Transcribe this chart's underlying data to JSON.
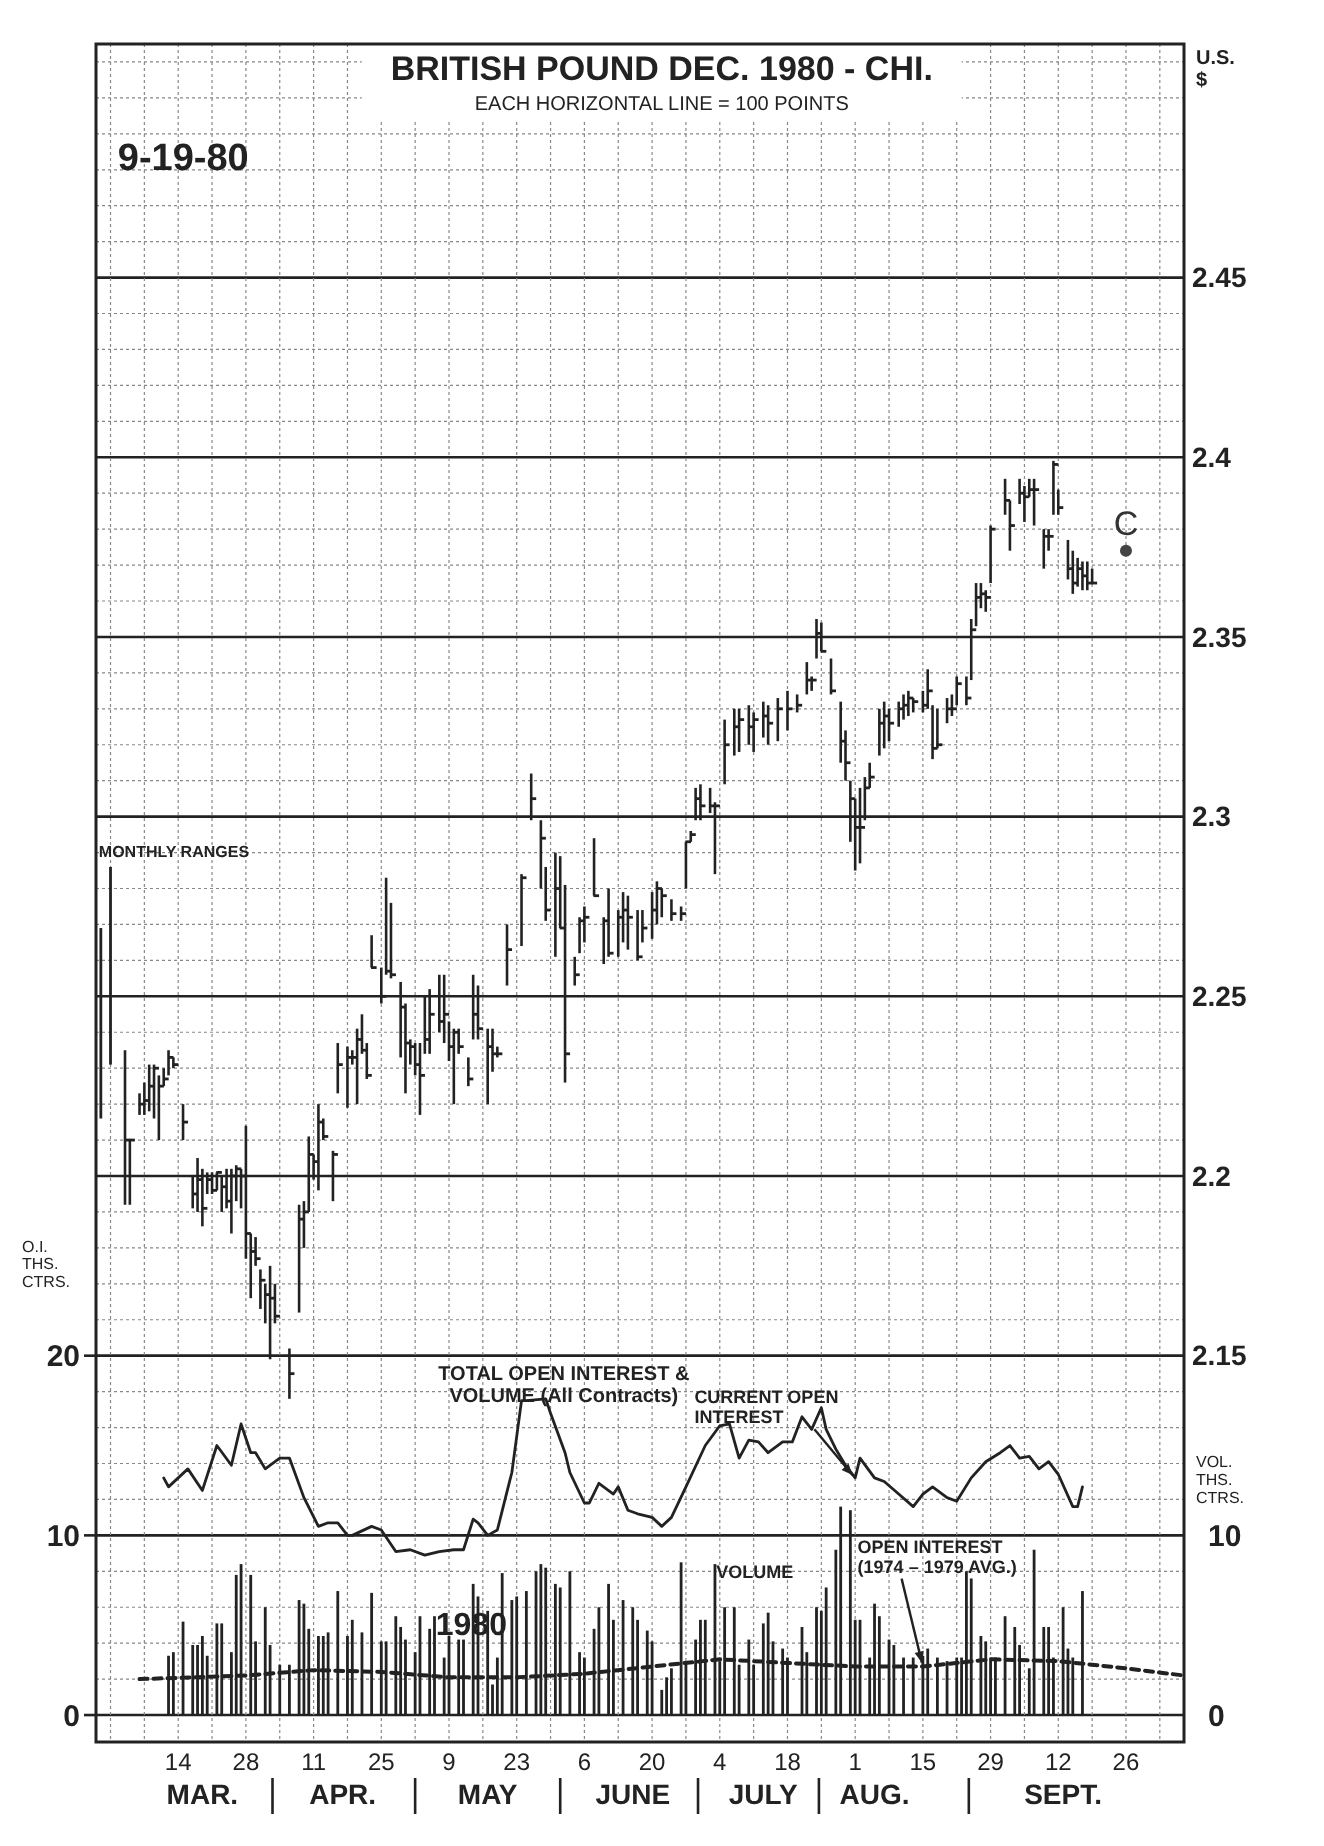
{
  "chart_data": {
    "type": "scatter",
    "title": "BRITISH POUND DEC. 1980 - CHI.",
    "subtitle": "EACH HORIZONTAL LINE = 100 POINTS",
    "ylabel": "U.S. $",
    "y2label": "O.I. THS. CTRS.",
    "y3label": "VOL. THS. CTRS.",
    "xlim": [
      "1980-02-26",
      "1980-10-08"
    ],
    "xticks": [
      {
        "value": "1980-03-14",
        "label": "14"
      },
      {
        "value": "1980-03-28",
        "label": "28"
      },
      {
        "value": "1980-04-11",
        "label": "11"
      },
      {
        "value": "1980-04-25",
        "label": "25"
      },
      {
        "value": "1980-05-09",
        "label": "9"
      },
      {
        "value": "1980-05-23",
        "label": "23"
      },
      {
        "value": "1980-06-06",
        "label": "6"
      },
      {
        "value": "1980-06-20",
        "label": "20"
      },
      {
        "value": "1980-07-04",
        "label": "4"
      },
      {
        "value": "1980-07-18",
        "label": "18"
      },
      {
        "value": "1980-08-01",
        "label": "1"
      },
      {
        "value": "1980-08-15",
        "label": "15"
      },
      {
        "value": "1980-08-29",
        "label": "29"
      },
      {
        "value": "1980-09-12",
        "label": "12"
      },
      {
        "value": "1980-09-26",
        "label": "26"
      }
    ],
    "x2lim": [
      "1980-02-26",
      "1980-10-08"
    ],
    "x2ticks": [
      {
        "value": "1980-03-19",
        "label": "MAR."
      },
      {
        "value": "1980-04-17",
        "label": "APR."
      },
      {
        "value": "1980-05-17",
        "label": "MAY"
      },
      {
        "value": "1980-06-16",
        "label": "JUNE"
      },
      {
        "value": "1980-07-13",
        "label": "JULY"
      },
      {
        "value": "1980-08-05",
        "label": "AUG."
      },
      {
        "value": "1980-09-13",
        "label": "SEPT."
      }
    ],
    "ylim": [
      2.0425,
      2.515
    ],
    "yticks": [
      2.15,
      2.2,
      2.25,
      2.3,
      2.35,
      2.4,
      2.45
    ],
    "y2lim": [
      -1.5,
      93
    ],
    "y2ticks": [
      0,
      10,
      20
    ],
    "y3lim": [
      -1.5,
      93
    ],
    "y3ticks": [
      0,
      10
    ],
    "grid": true,
    "series": [
      {
        "name": "MONTHLY RANGES",
        "type": "bar",
        "color": "#222222",
        "x": [
          "1980-02-27",
          "1980-02-29"
        ],
        "base": [
          2.216,
          2.231
        ],
        "values": [
          0.053,
          0.055
        ]
      },
      {
        "color": "#222222",
        "x": [
          "1980-03-03",
          "1980-03-04",
          "1980-03-06",
          "1980-03-07",
          "1980-03-08",
          "1980-03-09",
          "1980-03-10",
          "1980-03-11",
          "1980-03-12",
          "1980-03-13",
          "1980-03-15",
          "1980-03-17",
          "1980-03-18",
          "1980-03-19",
          "1980-03-20",
          "1980-03-21",
          "1980-03-22",
          "1980-03-23",
          "1980-03-24",
          "1980-03-25",
          "1980-03-26",
          "1980-03-27",
          "1980-03-28",
          "1980-03-29",
          "1980-03-30",
          "1980-03-31",
          "1980-04-01",
          "1980-04-02",
          "1980-04-03",
          "1980-04-06",
          "1980-04-08",
          "1980-04-09",
          "1980-04-10",
          "1980-04-11",
          "1980-04-12",
          "1980-04-13",
          "1980-04-15",
          "1980-04-16",
          "1980-04-18",
          "1980-04-19",
          "1980-04-20",
          "1980-04-21",
          "1980-04-22",
          "1980-04-23",
          "1980-04-25",
          "1980-04-26",
          "1980-04-27",
          "1980-04-29",
          "1980-04-30",
          "1980-05-01",
          "1980-05-02",
          "1980-05-03",
          "1980-05-04",
          "1980-05-05",
          "1980-05-07",
          "1980-05-08",
          "1980-05-09",
          "1980-05-10",
          "1980-05-11",
          "1980-05-13",
          "1980-05-14",
          "1980-05-15",
          "1980-05-17",
          "1980-05-18",
          "1980-05-19",
          "1980-05-21",
          "1980-05-24",
          "1980-05-26",
          "1980-05-28",
          "1980-05-29",
          "1980-05-31",
          "1980-06-01",
          "1980-06-02",
          "1980-06-04",
          "1980-06-05",
          "1980-06-06",
          "1980-06-08",
          "1980-06-10",
          "1980-06-11",
          "1980-06-13",
          "1980-06-14",
          "1980-06-15",
          "1980-06-17",
          "1980-06-18",
          "1980-06-20",
          "1980-06-21",
          "1980-06-22",
          "1980-06-24",
          "1980-06-26",
          "1980-06-27",
          "1980-06-28",
          "1980-06-29",
          "1980-06-30",
          "1980-07-02",
          "1980-07-03",
          "1980-07-05",
          "1980-07-07",
          "1980-07-08",
          "1980-07-10",
          "1980-07-11",
          "1980-07-13",
          "1980-07-14",
          "1980-07-16",
          "1980-07-18",
          "1980-07-20",
          "1980-07-22",
          "1980-07-23",
          "1980-07-24",
          "1980-07-25",
          "1980-07-27",
          "1980-07-29",
          "1980-07-30",
          "1980-07-31",
          "1980-08-01",
          "1980-08-02",
          "1980-08-03",
          "1980-08-04",
          "1980-08-06",
          "1980-08-07",
          "1980-08-08",
          "1980-08-10",
          "1980-08-11",
          "1980-08-12",
          "1980-08-13",
          "1980-08-15",
          "1980-08-16",
          "1980-08-17",
          "1980-08-18",
          "1980-08-20",
          "1980-08-21",
          "1980-08-22",
          "1980-08-24",
          "1980-08-25",
          "1980-08-26",
          "1980-08-27",
          "1980-08-28",
          "1980-08-29",
          "1980-09-01",
          "1980-09-02",
          "1980-09-04",
          "1980-09-05",
          "1980-09-06",
          "1980-09-07",
          "1980-09-09",
          "1980-09-10",
          "1980-09-11",
          "1980-09-12",
          "1980-09-14",
          "1980-09-15",
          "1980-09-16",
          "1980-09-17",
          "1980-09-18",
          "1980-09-19"
        ],
        "values": [
          2.21,
          2.21,
          2.22,
          2.221,
          2.225,
          2.23,
          2.225,
          2.227,
          2.233,
          2.231,
          2.215,
          2.195,
          2.199,
          2.191,
          2.199,
          2.196,
          2.201,
          2.197,
          2.193,
          2.2,
          2.202,
          2.2,
          2.184,
          2.179,
          2.177,
          2.171,
          2.167,
          2.166,
          2.161,
          2.145,
          2.188,
          2.19,
          2.206,
          2.204,
          2.215,
          2.211,
          2.206,
          2.231,
          2.233,
          2.233,
          2.238,
          2.235,
          2.228,
          2.258,
          2.25,
          2.257,
          2.256,
          2.247,
          2.237,
          2.236,
          2.231,
          2.228,
          2.238,
          2.245,
          2.243,
          2.245,
          2.236,
          2.24,
          2.236,
          2.227,
          2.245,
          2.241,
          2.236,
          2.234,
          2.234,
          2.263,
          2.283,
          2.305,
          2.294,
          2.274,
          2.28,
          2.269,
          2.234,
          2.256,
          2.271,
          2.272,
          2.278,
          2.271,
          2.262,
          2.272,
          2.274,
          2.272,
          2.261,
          2.269,
          2.274,
          2.28,
          2.278,
          2.273,
          2.273,
          2.293,
          2.295,
          2.305,
          2.303,
          2.303,
          2.303,
          2.32,
          2.325,
          2.327,
          2.325,
          2.327,
          2.328,
          2.326,
          2.33,
          2.33,
          2.331,
          2.338,
          2.338,
          2.351,
          2.346,
          2.335,
          2.321,
          2.315,
          2.305,
          2.297,
          2.297,
          2.308,
          2.311,
          2.326,
          2.328,
          2.326,
          2.33,
          2.331,
          2.333,
          2.332,
          2.331,
          2.335,
          2.319,
          2.32,
          2.33,
          2.33,
          2.337,
          2.333,
          2.352,
          2.361,
          2.362,
          2.361,
          2.38,
          2.388,
          2.381,
          2.39,
          2.389,
          2.391,
          2.391,
          2.378,
          2.378,
          2.398,
          2.386,
          2.369,
          2.365,
          2.369,
          2.367,
          2.365,
          2.365
        ],
        "errors": [
          [
            2.192,
            2.235
          ],
          [
            2.192,
            2.21
          ],
          [
            2.217,
            2.223
          ],
          [
            2.217,
            2.226
          ],
          [
            2.218,
            2.231
          ],
          [
            2.216,
            2.231
          ],
          [
            2.21,
            2.228
          ],
          [
            2.225,
            2.23
          ],
          [
            2.228,
            2.235
          ],
          [
            2.23,
            2.233
          ],
          [
            2.21,
            2.22
          ],
          [
            2.191,
            2.2
          ],
          [
            2.19,
            2.205
          ],
          [
            2.186,
            2.202
          ],
          [
            2.195,
            2.201
          ],
          [
            2.195,
            2.201
          ],
          [
            2.196,
            2.201
          ],
          [
            2.19,
            2.2
          ],
          [
            2.191,
            2.202
          ],
          [
            2.184,
            2.202
          ],
          [
            2.193,
            2.203
          ],
          [
            2.191,
            2.202
          ],
          [
            2.177,
            2.214
          ],
          [
            2.166,
            2.184
          ],
          [
            2.175,
            2.183
          ],
          [
            2.163,
            2.174
          ],
          [
            2.159,
            2.17
          ],
          [
            2.149,
            2.175
          ],
          [
            2.159,
            2.17
          ],
          [
            2.138,
            2.152
          ],
          [
            2.162,
            2.192
          ],
          [
            2.18,
            2.193
          ],
          [
            2.19,
            2.211
          ],
          [
            2.199,
            2.206
          ],
          [
            2.196,
            2.22
          ],
          [
            2.21,
            2.216
          ],
          [
            2.193,
            2.207
          ],
          [
            2.223,
            2.237
          ],
          [
            2.219,
            2.236
          ],
          [
            2.231,
            2.235
          ],
          [
            2.22,
            2.241
          ],
          [
            2.234,
            2.245
          ],
          [
            2.227,
            2.237
          ],
          [
            2.258,
            2.267
          ],
          [
            2.248,
            2.258
          ],
          [
            2.256,
            2.283
          ],
          [
            2.255,
            2.276
          ],
          [
            2.233,
            2.254
          ],
          [
            2.223,
            2.248
          ],
          [
            2.231,
            2.238
          ],
          [
            2.228,
            2.237
          ],
          [
            2.217,
            2.237
          ],
          [
            2.234,
            2.25
          ],
          [
            2.234,
            2.252
          ],
          [
            2.24,
            2.256
          ],
          [
            2.237,
            2.256
          ],
          [
            2.232,
            2.243
          ],
          [
            2.22,
            2.241
          ],
          [
            2.234,
            2.241
          ],
          [
            2.225,
            2.233
          ],
          [
            2.238,
            2.256
          ],
          [
            2.238,
            2.253
          ],
          [
            2.22,
            2.241
          ],
          [
            2.229,
            2.241
          ],
          [
            2.233,
            2.236
          ],
          [
            2.253,
            2.27
          ],
          [
            2.264,
            2.284
          ],
          [
            2.299,
            2.312
          ],
          [
            2.28,
            2.299
          ],
          [
            2.271,
            2.286
          ],
          [
            2.261,
            2.29
          ],
          [
            2.269,
            2.289
          ],
          [
            2.226,
            2.281
          ],
          [
            2.253,
            2.261
          ],
          [
            2.262,
            2.272
          ],
          [
            2.265,
            2.275
          ],
          [
            2.278,
            2.294
          ],
          [
            2.259,
            2.272
          ],
          [
            2.261,
            2.28
          ],
          [
            2.261,
            2.274
          ],
          [
            2.265,
            2.279
          ],
          [
            2.263,
            2.278
          ],
          [
            2.26,
            2.274
          ],
          [
            2.265,
            2.274
          ],
          [
            2.266,
            2.279
          ],
          [
            2.27,
            2.282
          ],
          [
            2.272,
            2.28
          ],
          [
            2.271,
            2.277
          ],
          [
            2.271,
            2.275
          ],
          [
            2.28,
            2.293
          ],
          [
            2.293,
            2.296
          ],
          [
            2.299,
            2.308
          ],
          [
            2.299,
            2.309
          ],
          [
            2.301,
            2.308
          ],
          [
            2.284,
            2.304
          ],
          [
            2.309,
            2.327
          ],
          [
            2.317,
            2.33
          ],
          [
            2.318,
            2.33
          ],
          [
            2.32,
            2.331
          ],
          [
            2.318,
            2.329
          ],
          [
            2.322,
            2.332
          ],
          [
            2.32,
            2.331
          ],
          [
            2.321,
            2.333
          ],
          [
            2.324,
            2.335
          ],
          [
            2.329,
            2.334
          ],
          [
            2.334,
            2.343
          ],
          [
            2.335,
            2.339
          ],
          [
            2.344,
            2.355
          ],
          [
            2.346,
            2.354
          ],
          [
            2.334,
            2.344
          ],
          [
            2.315,
            2.332
          ],
          [
            2.31,
            2.324
          ],
          [
            2.293,
            2.31
          ],
          [
            2.285,
            2.305
          ],
          [
            2.287,
            2.308
          ],
          [
            2.299,
            2.311
          ],
          [
            2.308,
            2.315
          ],
          [
            2.317,
            2.33
          ],
          [
            2.319,
            2.332
          ],
          [
            2.321,
            2.33
          ],
          [
            2.325,
            2.332
          ],
          [
            2.327,
            2.334
          ],
          [
            2.328,
            2.335
          ],
          [
            2.329,
            2.333
          ],
          [
            2.329,
            2.335
          ],
          [
            2.33,
            2.341
          ],
          [
            2.316,
            2.331
          ],
          [
            2.319,
            2.33
          ],
          [
            2.326,
            2.333
          ],
          [
            2.328,
            2.334
          ],
          [
            2.331,
            2.339
          ],
          [
            2.331,
            2.339
          ],
          [
            2.338,
            2.355
          ],
          [
            2.353,
            2.365
          ],
          [
            2.358,
            2.365
          ],
          [
            2.357,
            2.363
          ],
          [
            2.365,
            2.381
          ],
          [
            2.384,
            2.394
          ],
          [
            2.374,
            2.388
          ],
          [
            2.387,
            2.394
          ],
          [
            2.382,
            2.392
          ],
          [
            2.389,
            2.394
          ],
          [
            2.381,
            2.394
          ],
          [
            2.369,
            2.38
          ],
          [
            2.374,
            2.38
          ],
          [
            2.384,
            2.399
          ],
          [
            2.384,
            2.391
          ],
          [
            2.366,
            2.377
          ],
          [
            2.362,
            2.374
          ],
          [
            2.364,
            2.372
          ],
          [
            2.363,
            2.371
          ],
          [
            2.363,
            2.371
          ],
          [
            2.365,
            2.369
          ]
        ]
      },
      {
        "name": "CURRENT OPEN INTEREST",
        "type": "line",
        "axis": "y2",
        "color": "#222222",
        "x": [
          "1980-03-11",
          "1980-03-12",
          "1980-03-16",
          "1980-03-19",
          "1980-03-22",
          "1980-03-25",
          "1980-03-27",
          "1980-03-29",
          "1980-03-30",
          "1980-04-01",
          "1980-04-04",
          "1980-04-06",
          "1980-04-09",
          "1980-04-12",
          "1980-04-14",
          "1980-04-16",
          "1980-04-18",
          "1980-04-19",
          "1980-04-23",
          "1980-04-25",
          "1980-04-28",
          "1980-05-01",
          "1980-05-04",
          "1980-05-07",
          "1980-05-10",
          "1980-05-12",
          "1980-05-14",
          "1980-05-15",
          "1980-05-17",
          "1980-05-19",
          "1980-05-22",
          "1980-05-24",
          "1980-05-25",
          "1980-05-29",
          "1980-05-30",
          "1980-06-02",
          "1980-06-03",
          "1980-06-06",
          "1980-06-07",
          "1980-06-09",
          "1980-06-12",
          "1980-06-13",
          "1980-06-15",
          "1980-06-17",
          "1980-06-20",
          "1980-06-22",
          "1980-06-24",
          "1980-06-27",
          "1980-07-01",
          "1980-07-04",
          "1980-07-06",
          "1980-07-08",
          "1980-07-10",
          "1980-07-12",
          "1980-07-14",
          "1980-07-17",
          "1980-07-19",
          "1980-07-21",
          "1980-07-23",
          "1980-07-25",
          "1980-07-26",
          "1980-07-28",
          "1980-07-30",
          "1980-08-01",
          "1980-08-02",
          "1980-08-05",
          "1980-08-07",
          "1980-08-10",
          "1980-08-13",
          "1980-08-15",
          "1980-08-17",
          "1980-08-20",
          "1980-08-22",
          "1980-08-25",
          "1980-08-28",
          "1980-08-31",
          "1980-09-02",
          "1980-09-04",
          "1980-09-06",
          "1980-09-08",
          "1980-09-10",
          "1980-09-12",
          "1980-09-15",
          "1980-09-16",
          "1980-09-17"
        ],
        "values": [
          13.2,
          12.7,
          13.7,
          12.5,
          15.0,
          13.9,
          16.2,
          14.6,
          14.6,
          13.7,
          14.3,
          14.3,
          12.1,
          10.5,
          10.7,
          10.7,
          10.0,
          10.0,
          10.5,
          10.3,
          9.1,
          9.2,
          8.9,
          9.1,
          9.2,
          9.2,
          10.9,
          10.7,
          10.0,
          10.3,
          13.5,
          17.5,
          17.5,
          17.6,
          16.8,
          14.6,
          13.5,
          11.8,
          11.8,
          12.9,
          12.3,
          12.7,
          11.4,
          11.2,
          11.0,
          10.5,
          11.0,
          12.7,
          15.0,
          16.1,
          16.2,
          14.3,
          15.3,
          15.2,
          14.6,
          15.2,
          15.2,
          16.6,
          15.9,
          17.1,
          15.9,
          14.8,
          13.9,
          13.2,
          14.3,
          13.2,
          13.0,
          12.3,
          11.6,
          12.3,
          12.7,
          12.1,
          11.9,
          13.2,
          14.1,
          14.6,
          15.0,
          14.3,
          14.4,
          13.7,
          14.1,
          13.4,
          11.6,
          11.6,
          12.7
        ]
      },
      {
        "name": "VOLUME",
        "type": "bar",
        "axis": "y2",
        "color": "#222222",
        "x": [
          "1980-03-12",
          "1980-03-13",
          "1980-03-15",
          "1980-03-17",
          "1980-03-18",
          "1980-03-19",
          "1980-03-20",
          "1980-03-22",
          "1980-03-23",
          "1980-03-25",
          "1980-03-26",
          "1980-03-27",
          "1980-03-29",
          "1980-03-30",
          "1980-04-01",
          "1980-04-02",
          "1980-04-04",
          "1980-04-06",
          "1980-04-08",
          "1980-04-09",
          "1980-04-10",
          "1980-04-12",
          "1980-04-13",
          "1980-04-14",
          "1980-04-16",
          "1980-04-18",
          "1980-04-19",
          "1980-04-21",
          "1980-04-23",
          "1980-04-25",
          "1980-04-26",
          "1980-04-28",
          "1980-04-29",
          "1980-04-30",
          "1980-05-02",
          "1980-05-03",
          "1980-05-05",
          "1980-05-06",
          "1980-05-08",
          "1980-05-09",
          "1980-05-11",
          "1980-05-12",
          "1980-05-14",
          "1980-05-15",
          "1980-05-17",
          "1980-05-18",
          "1980-05-19",
          "1980-05-20",
          "1980-05-22",
          "1980-05-23",
          "1980-05-25",
          "1980-05-27",
          "1980-05-28",
          "1980-05-29",
          "1980-05-31",
          "1980-06-01",
          "1980-06-03",
          "1980-06-05",
          "1980-06-06",
          "1980-06-08",
          "1980-06-09",
          "1980-06-11",
          "1980-06-12",
          "1980-06-14",
          "1980-06-16",
          "1980-06-17",
          "1980-06-19",
          "1980-06-20",
          "1980-06-22",
          "1980-06-23",
          "1980-06-24",
          "1980-06-26",
          "1980-06-27",
          "1980-06-29",
          "1980-06-30",
          "1980-07-01",
          "1980-07-03",
          "1980-07-04",
          "1980-07-05",
          "1980-07-07",
          "1980-07-08",
          "1980-07-10",
          "1980-07-11",
          "1980-07-13",
          "1980-07-14",
          "1980-07-15",
          "1980-07-17",
          "1980-07-18",
          "1980-07-21",
          "1980-07-22",
          "1980-07-24",
          "1980-07-25",
          "1980-07-26",
          "1980-07-28",
          "1980-07-29",
          "1980-07-31",
          "1980-08-01",
          "1980-08-02",
          "1980-08-04",
          "1980-08-05",
          "1980-08-06",
          "1980-08-08",
          "1980-08-09",
          "1980-08-11",
          "1980-08-13",
          "1980-08-15",
          "1980-08-16",
          "1980-08-18",
          "1980-08-20",
          "1980-08-22",
          "1980-08-23",
          "1980-08-24",
          "1980-08-25",
          "1980-08-27",
          "1980-08-28",
          "1980-08-29",
          "1980-08-30",
          "1980-09-01",
          "1980-09-03",
          "1980-09-04",
          "1980-09-06",
          "1980-09-07",
          "1980-09-09",
          "1980-09-10",
          "1980-09-11",
          "1980-09-13",
          "1980-09-14",
          "1980-09-15",
          "1980-09-17"
        ],
        "values": [
          3.3,
          3.5,
          5.2,
          3.9,
          3.9,
          4.4,
          3.3,
          5.1,
          5.1,
          3.5,
          7.8,
          8.4,
          7.8,
          4.1,
          6.0,
          3.9,
          2.8,
          2.8,
          6.4,
          6.2,
          4.8,
          4.4,
          4.4,
          4.6,
          6.9,
          4.4,
          5.3,
          4.6,
          6.8,
          4.1,
          4.1,
          5.5,
          4.9,
          4.2,
          3.5,
          5.5,
          4.8,
          5.5,
          3.2,
          4.4,
          4.2,
          4.2,
          7.3,
          6.6,
          5.8,
          1.7,
          3.2,
          7.9,
          6.4,
          6.6,
          6.9,
          8.0,
          8.4,
          8.2,
          7.3,
          7.1,
          8.0,
          3.5,
          3.2,
          4.8,
          6.0,
          7.3,
          5.3,
          6.4,
          6.0,
          5.3,
          4.7,
          4.1,
          1.4,
          2.1,
          2.6,
          8.5,
          3.0,
          4.2,
          5.3,
          5.3,
          8.4,
          3.0,
          6.0,
          6.0,
          2.8,
          4.2,
          2.8,
          5.1,
          5.7,
          4.1,
          3.7,
          3.2,
          4.9,
          3.5,
          6.0,
          5.8,
          7.1,
          9.2,
          11.6,
          11.4,
          5.3,
          5.3,
          3.2,
          6.2,
          5.5,
          4.2,
          3.9,
          3.2,
          3.2,
          3.3,
          3.7,
          3.2,
          3.0,
          3.2,
          3.2,
          8.0,
          7.6,
          4.4,
          4.1,
          3.2,
          3.2,
          5.5,
          4.9,
          3.9,
          2.6,
          9.2,
          4.9,
          4.9,
          3.2,
          6.0,
          3.7,
          3.2,
          6.9
        ]
      },
      {
        "name": "OPEN INTEREST (1974 – 1979 AVG.)",
        "type": "line",
        "axis": "y2",
        "line_style": "dashed",
        "color": "#222222",
        "x": [
          "1980-03-06",
          "1980-03-28",
          "1980-04-11",
          "1980-04-25",
          "1980-05-09",
          "1980-05-23",
          "1980-06-06",
          "1980-06-20",
          "1980-07-04",
          "1980-07-18",
          "1980-08-01",
          "1980-08-15",
          "1980-08-29",
          "1980-09-12",
          "1980-09-26",
          "1980-10-08"
        ],
        "values": [
          2.0,
          2.2,
          2.5,
          2.4,
          2.1,
          2.1,
          2.3,
          2.7,
          3.1,
          2.9,
          2.7,
          2.7,
          3.1,
          3.0,
          2.6,
          2.2
        ]
      }
    ],
    "annotations": [
      "9-19-80",
      "TOTAL OPEN INTEREST & VOLUME (All Contracts)",
      "1980",
      {
        "text": "C",
        "x": "1980-09-26",
        "y": 2.374
      }
    ]
  }
}
